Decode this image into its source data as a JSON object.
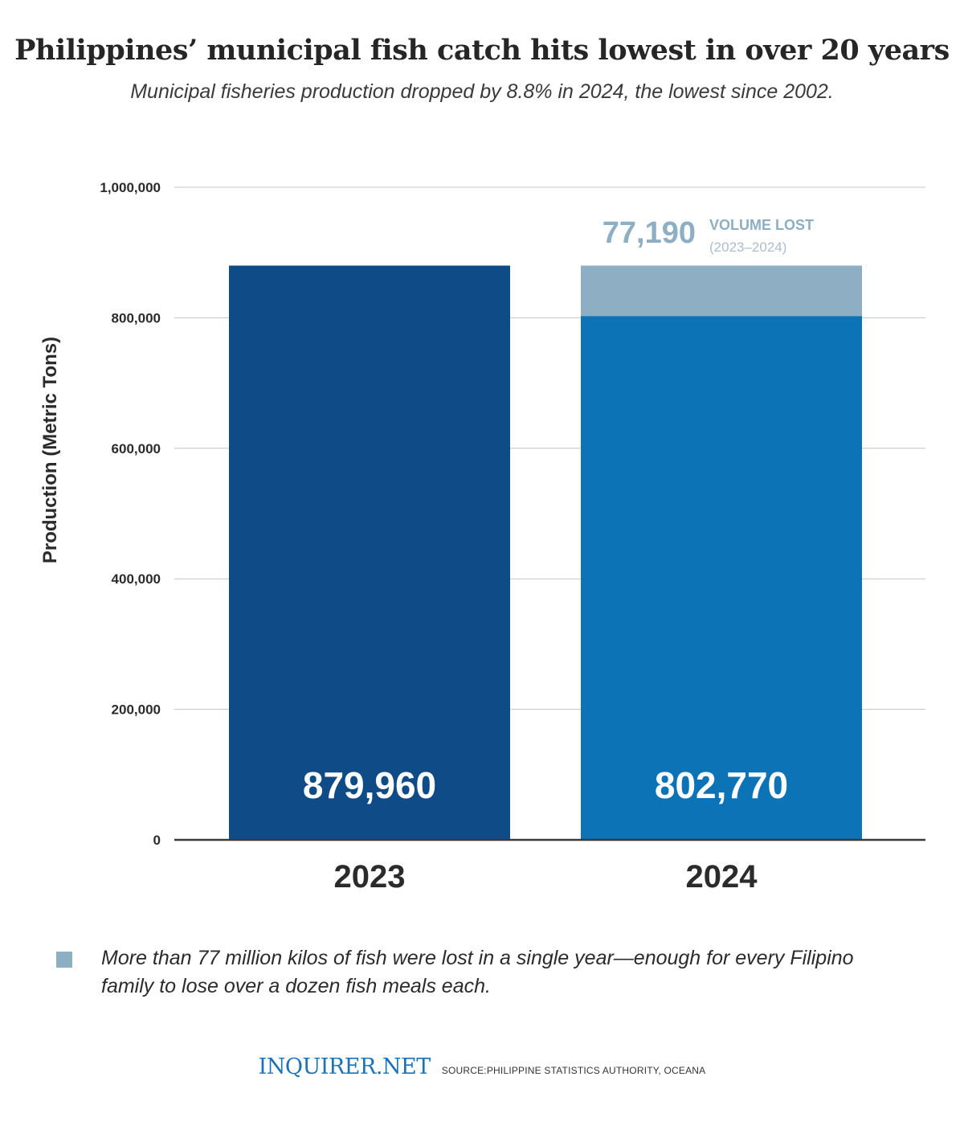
{
  "header": {
    "title": "Philippines’ municipal fish catch hits lowest in over 20 years",
    "subtitle": "Municipal fisheries production dropped by 8.8% in 2024, the lowest since 2002."
  },
  "chart_data": {
    "type": "bar",
    "ylabel": "Production (Metric Tons)",
    "xlabel": "",
    "ylim": [
      0,
      1000000
    ],
    "yticks": [
      0,
      200000,
      400000,
      600000,
      800000,
      1000000
    ],
    "ytick_labels": [
      "0",
      "200,000",
      "400,000",
      "600,000",
      "800,000",
      "1,000,000"
    ],
    "grid": true,
    "categories": [
      "2023",
      "2024"
    ],
    "series": [
      {
        "name": "Production",
        "values": [
          879960,
          802770
        ],
        "labels": [
          "879,960",
          "802,770"
        ],
        "colors": [
          "#0f4c87",
          "#0c73b7"
        ]
      },
      {
        "name": "Volume lost",
        "values": [
          0,
          77190
        ],
        "color": "#8eaec3"
      }
    ],
    "annotation": {
      "value_label": "77,190",
      "title": "VOLUME LOST",
      "period": "(2023–2024)"
    }
  },
  "legend": {
    "swatch_color": "#8eaec3",
    "text": "More than 77 million kilos of fish were lost in a single year—enough for every Filipino family to lose over a dozen fish meals each."
  },
  "footer": {
    "logo": "INQUIRER.NET",
    "source": "SOURCE:PHILIPPINE STATISTICS AUTHORITY, OCEANA"
  }
}
